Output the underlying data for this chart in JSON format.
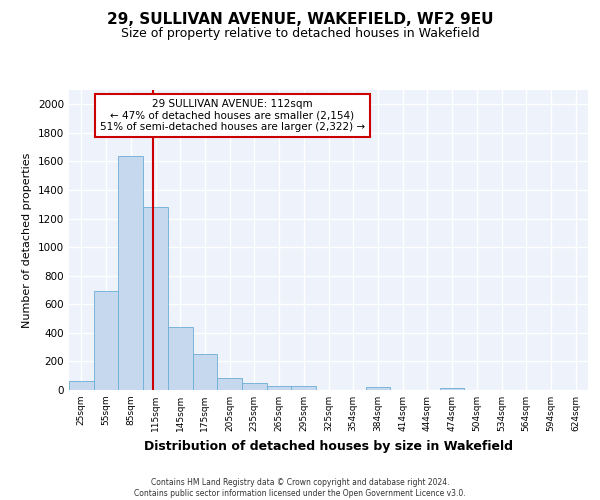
{
  "title1": "29, SULLIVAN AVENUE, WAKEFIELD, WF2 9EU",
  "title2": "Size of property relative to detached houses in Wakefield",
  "xlabel": "Distribution of detached houses by size in Wakefield",
  "ylabel": "Number of detached properties",
  "categories": [
    "25sqm",
    "55sqm",
    "85sqm",
    "115sqm",
    "145sqm",
    "175sqm",
    "205sqm",
    "235sqm",
    "265sqm",
    "295sqm",
    "325sqm",
    "354sqm",
    "384sqm",
    "414sqm",
    "444sqm",
    "474sqm",
    "504sqm",
    "534sqm",
    "564sqm",
    "594sqm",
    "624sqm"
  ],
  "values": [
    65,
    690,
    1640,
    1280,
    440,
    255,
    85,
    50,
    30,
    25,
    0,
    0,
    20,
    0,
    0,
    15,
    0,
    0,
    0,
    0,
    0
  ],
  "bar_color": "#c5d8ed",
  "bar_edge_color": "#6aaed6",
  "annotation_line1": "29 SULLIVAN AVENUE: 112sqm",
  "annotation_line2": "← 47% of detached houses are smaller (2,154)",
  "annotation_line3": "51% of semi-detached houses are larger (2,322) →",
  "ylim": [
    0,
    2100
  ],
  "yticks": [
    0,
    200,
    400,
    600,
    800,
    1000,
    1200,
    1400,
    1600,
    1800,
    2000
  ],
  "background_color": "#edf2fb",
  "grid_color": "#ffffff",
  "annotation_box_facecolor": "#ffffff",
  "annotation_box_edgecolor": "#cc0000",
  "red_line_color": "#cc0000",
  "red_line_x": 2.9,
  "footer1": "Contains HM Land Registry data © Crown copyright and database right 2024.",
  "footer2": "Contains public sector information licensed under the Open Government Licence v3.0."
}
